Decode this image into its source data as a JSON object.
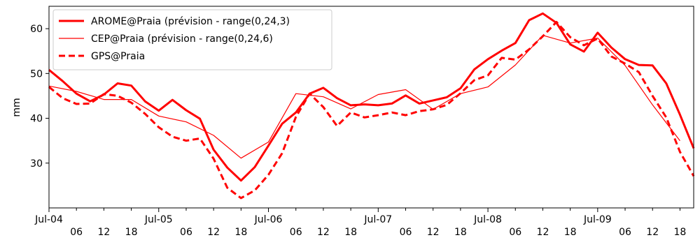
{
  "chart_data": {
    "type": "line",
    "title": "",
    "xlabel": "",
    "ylabel": "mm",
    "ylim": [
      20,
      65
    ],
    "xlim": [
      0,
      141
    ],
    "x_unit": "hours since Jul-04 00:00",
    "yticks": [
      30,
      40,
      50,
      60
    ],
    "xticks": [
      {
        "x": 0,
        "label": "Jul-04",
        "row": 1
      },
      {
        "x": 6,
        "label": "06",
        "row": 2
      },
      {
        "x": 12,
        "label": "12",
        "row": 2
      },
      {
        "x": 18,
        "label": "18",
        "row": 2
      },
      {
        "x": 24,
        "label": "Jul-05",
        "row": 1
      },
      {
        "x": 30,
        "label": "06",
        "row": 2
      },
      {
        "x": 36,
        "label": "12",
        "row": 2
      },
      {
        "x": 42,
        "label": "18",
        "row": 2
      },
      {
        "x": 48,
        "label": "Jul-06",
        "row": 1
      },
      {
        "x": 54,
        "label": "06",
        "row": 2
      },
      {
        "x": 60,
        "label": "12",
        "row": 2
      },
      {
        "x": 66,
        "label": "18",
        "row": 2
      },
      {
        "x": 72,
        "label": "Jul-07",
        "row": 1
      },
      {
        "x": 78,
        "label": "06",
        "row": 2
      },
      {
        "x": 84,
        "label": "12",
        "row": 2
      },
      {
        "x": 90,
        "label": "18",
        "row": 2
      },
      {
        "x": 96,
        "label": "Jul-08",
        "row": 1
      },
      {
        "x": 102,
        "label": "06",
        "row": 2
      },
      {
        "x": 108,
        "label": "12",
        "row": 2
      },
      {
        "x": 114,
        "label": "18",
        "row": 2
      },
      {
        "x": 120,
        "label": "Jul-09",
        "row": 1
      },
      {
        "x": 126,
        "label": "06",
        "row": 2
      },
      {
        "x": 132,
        "label": "12",
        "row": 2
      },
      {
        "x": 138,
        "label": "18",
        "row": 2
      }
    ],
    "legend_position": "top-left",
    "series": [
      {
        "name": "AROME@Praia (prévision - range(0,24,3)",
        "color": "#ff0000",
        "style": "solid-thick",
        "x": [
          0,
          3,
          6,
          9,
          12,
          15,
          18,
          21,
          24,
          27,
          30,
          33,
          36,
          39,
          42,
          45,
          48,
          51,
          54,
          57,
          60,
          63,
          66,
          69,
          72,
          75,
          78,
          81,
          84,
          87,
          90,
          93,
          96,
          99,
          102,
          105,
          108,
          111,
          114,
          117,
          120,
          123,
          126,
          129,
          132,
          135,
          138,
          141
        ],
        "y": [
          50.8,
          48.3,
          45.5,
          43.8,
          45.3,
          47.8,
          47.3,
          43.8,
          41.7,
          44.1,
          41.8,
          39.9,
          33.0,
          29.0,
          26.1,
          29.1,
          33.9,
          38.8,
          41.3,
          45.5,
          46.8,
          44.5,
          42.9,
          43.1,
          42.9,
          43.3,
          45.1,
          43.3,
          44.0,
          44.7,
          46.7,
          50.9,
          53.2,
          55.1,
          56.8,
          61.9,
          63.4,
          61.3,
          56.5,
          54.9,
          59.1,
          55.8,
          53.2,
          51.9,
          51.8,
          47.8,
          40.8,
          33.3
        ]
      },
      {
        "name": "CEP@Praia (prévision - range(0,24,6)",
        "color": "#ff0000",
        "style": "solid-thin",
        "x": [
          0,
          6,
          12,
          18,
          24,
          30,
          36,
          42,
          48,
          54,
          60,
          66,
          72,
          78,
          84,
          90,
          96,
          102,
          108,
          114,
          120,
          126,
          132,
          138
        ],
        "y": [
          47.2,
          46.0,
          44.2,
          44.2,
          40.5,
          39.2,
          36.2,
          31.1,
          34.7,
          45.5,
          44.8,
          42.1,
          45.3,
          46.4,
          42.0,
          45.5,
          47.0,
          51.9,
          58.5,
          56.8,
          57.9,
          51.8,
          43.0,
          35.0
        ]
      },
      {
        "name": "GPS@Praia",
        "color": "#ff0000",
        "style": "dashed",
        "x": [
          0,
          3,
          6,
          9,
          12,
          15,
          18,
          21,
          24,
          27,
          30,
          33,
          36,
          39,
          42,
          45,
          48,
          51,
          54,
          57,
          60,
          63,
          66,
          69,
          72,
          75,
          78,
          81,
          84,
          87,
          90,
          93,
          96,
          99,
          102,
          105,
          108,
          111,
          114,
          117,
          120,
          123,
          126,
          129,
          132,
          135,
          138,
          141
        ],
        "y": [
          47.0,
          44.5,
          43.2,
          43.3,
          45.4,
          45.0,
          43.5,
          41.0,
          38.0,
          35.9,
          35.0,
          35.5,
          31.0,
          24.5,
          22.2,
          23.9,
          27.4,
          32.2,
          40.3,
          45.5,
          42.5,
          38.3,
          41.3,
          40.2,
          40.7,
          41.3,
          40.7,
          41.6,
          42.0,
          43.0,
          45.6,
          48.5,
          49.6,
          53.5,
          53.1,
          55.4,
          58.3,
          61.5,
          58.1,
          56.3,
          57.8,
          53.8,
          52.2,
          50.3,
          45.0,
          40.2,
          32.5,
          27.1
        ]
      }
    ]
  }
}
